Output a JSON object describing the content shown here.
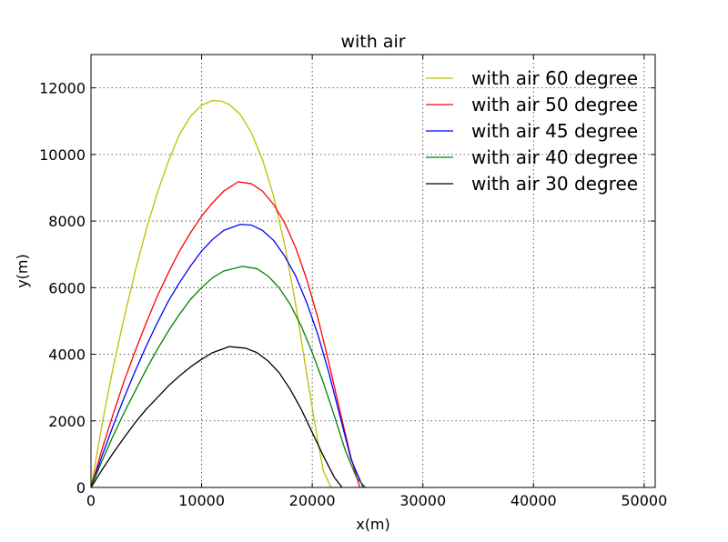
{
  "chart_data": {
    "type": "line",
    "title": "with air",
    "xlabel": "x(m)",
    "ylabel": "y(m)",
    "xlim": [
      0,
      51000
    ],
    "ylim": [
      0,
      13000
    ],
    "x_ticks": [
      0,
      10000,
      20000,
      30000,
      40000,
      50000
    ],
    "y_ticks": [
      0,
      2000,
      4000,
      6000,
      8000,
      10000,
      12000
    ],
    "grid": true,
    "legend_position": "top-right",
    "series": [
      {
        "name": "with air 60 degree",
        "color": "#bfbf00",
        "x": [
          0,
          1000,
          2000,
          3000,
          4000,
          5000,
          6000,
          7000,
          8000,
          9000,
          10000,
          11000,
          11800,
          12500,
          13500,
          14500,
          15500,
          16500,
          17500,
          18500,
          19500,
          20500,
          21000,
          21700
        ],
        "y": [
          0,
          1900,
          3600,
          5100,
          6500,
          7750,
          8850,
          9800,
          10600,
          11150,
          11480,
          11620,
          11600,
          11500,
          11200,
          10650,
          9850,
          8750,
          7300,
          5500,
          3400,
          1400,
          500,
          0
        ]
      },
      {
        "name": "with air 50 degree",
        "color": "#ff0000",
        "x": [
          0,
          1000,
          2000,
          3000,
          4000,
          5000,
          6000,
          7000,
          8000,
          9000,
          10000,
          11000,
          12000,
          13300,
          14500,
          15500,
          16500,
          17500,
          18500,
          19500,
          20500,
          21500,
          22500,
          23500,
          24300
        ],
        "y": [
          0,
          1150,
          2200,
          3200,
          4100,
          4950,
          5750,
          6450,
          7100,
          7650,
          8150,
          8550,
          8900,
          9180,
          9120,
          8900,
          8500,
          7950,
          7200,
          6250,
          5100,
          3750,
          2300,
          900,
          0
        ]
      },
      {
        "name": "with air 45 degree",
        "color": "#0000ff",
        "x": [
          0,
          1000,
          2000,
          3000,
          4000,
          5000,
          6000,
          7000,
          8000,
          9000,
          10000,
          11000,
          12000,
          13500,
          14500,
          15500,
          16500,
          17500,
          18500,
          19500,
          20500,
          21500,
          22500,
          23500,
          24600
        ],
        "y": [
          0,
          950,
          1850,
          2700,
          3500,
          4250,
          4950,
          5600,
          6150,
          6650,
          7100,
          7450,
          7720,
          7900,
          7880,
          7720,
          7420,
          6950,
          6350,
          5550,
          4600,
          3450,
          2150,
          850,
          0
        ]
      },
      {
        "name": "with air 40 degree",
        "color": "#008000",
        "x": [
          0,
          1000,
          2000,
          3000,
          4000,
          5000,
          6000,
          7000,
          8000,
          9000,
          10000,
          11000,
          12000,
          13700,
          15000,
          16000,
          17000,
          18000,
          19000,
          20000,
          21000,
          22000,
          23000,
          24000,
          24800
        ],
        "y": [
          0,
          800,
          1550,
          2250,
          2900,
          3550,
          4150,
          4700,
          5200,
          5650,
          6000,
          6300,
          6500,
          6640,
          6570,
          6350,
          6000,
          5500,
          4850,
          4050,
          3150,
          2150,
          1100,
          300,
          0
        ]
      },
      {
        "name": "with air 30 degree",
        "color": "#000000",
        "x": [
          0,
          1000,
          2000,
          3000,
          4000,
          5000,
          6000,
          7000,
          8000,
          9000,
          10000,
          11000,
          12500,
          14000,
          15000,
          16000,
          17000,
          18000,
          19000,
          20000,
          21000,
          22000,
          22700
        ],
        "y": [
          0,
          530,
          1030,
          1500,
          1950,
          2350,
          2700,
          3050,
          3350,
          3620,
          3850,
          4050,
          4230,
          4180,
          4050,
          3800,
          3450,
          2950,
          2350,
          1650,
          950,
          300,
          0
        ]
      }
    ]
  }
}
